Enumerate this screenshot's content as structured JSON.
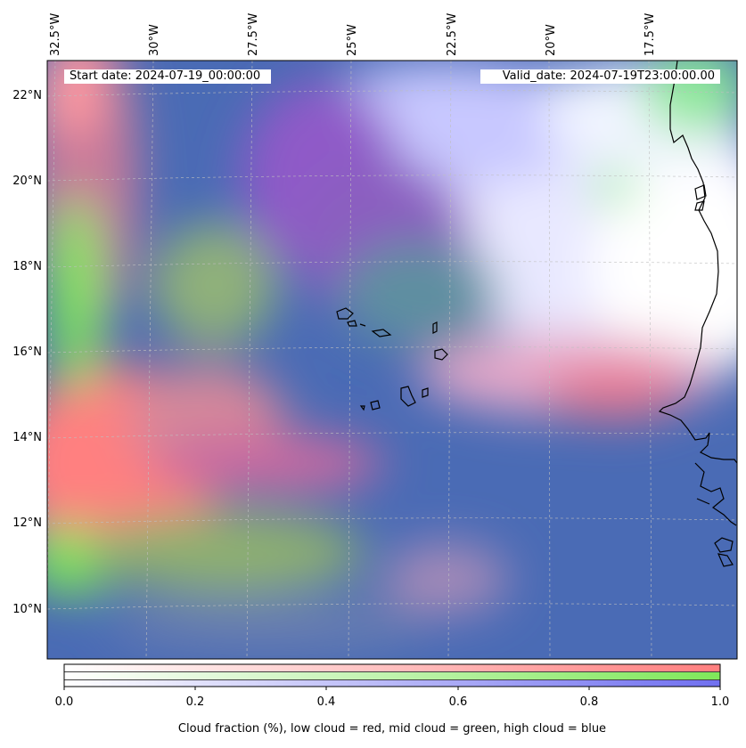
{
  "header": {
    "start_date": "Start date: 2024-07-19_00:00:00",
    "valid_date": "Valid_date: 2024-07-19T23:00:00.00"
  },
  "map": {
    "lon_labels": [
      "32.5°W",
      "30°W",
      "27.5°W",
      "25°W",
      "22.5°W",
      "20°W",
      "17.5°W"
    ],
    "lat_labels": [
      "22°N",
      "20°N",
      "18°N",
      "16°N",
      "14°N",
      "12°N",
      "10°N"
    ],
    "colors": {
      "low_cloud": "#ff7f7f",
      "mid_cloud": "#7fe85a",
      "high_cloud": "#8080ff",
      "clear_sky_ocean": "#4a6bb5",
      "coastline": "#000000"
    }
  },
  "colorbar": {
    "ticks": [
      "0.0",
      "0.2",
      "0.4",
      "0.6",
      "0.8",
      "1.0"
    ],
    "label": "Cloud fraction (%), low cloud = red, mid cloud = green, high cloud = blue",
    "range": [
      0.0,
      1.0
    ],
    "bands": [
      "red",
      "green",
      "blue"
    ]
  }
}
